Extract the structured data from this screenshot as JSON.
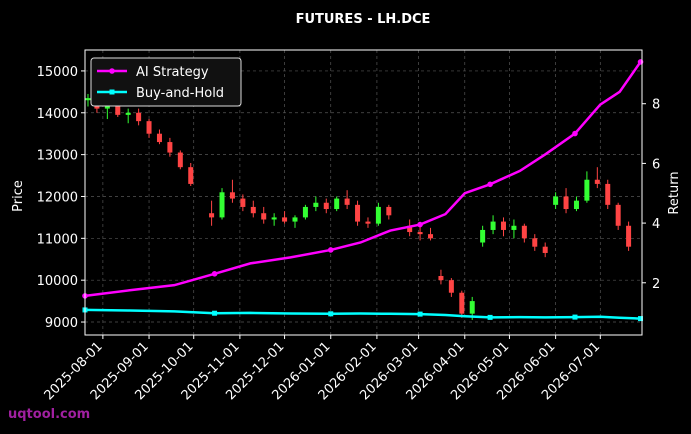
{
  "chart_data": {
    "type": "candlestick",
    "title": "FUTURES - LH.DCE",
    "ylabel": "Price",
    "y2label": "Return",
    "watermark": "uqtool.com",
    "xlim": [
      "2025-07-20",
      "2026-07-29"
    ],
    "xticks": [
      "2025-08-01",
      "2025-09-01",
      "2025-10-01",
      "2025-11-01",
      "2025-12-01",
      "2026-01-01",
      "2026-02-01",
      "2026-03-01",
      "2026-04-01",
      "2026-05-01",
      "2026-06-01",
      "2026-07-01"
    ],
    "ylim": [
      8690,
      15500
    ],
    "yticks": [
      9000,
      10000,
      11000,
      12000,
      13000,
      14000,
      15000
    ],
    "y2lim": [
      0.25,
      9.8
    ],
    "y2ticks": [
      2,
      4,
      6,
      8
    ],
    "grid": true,
    "legend": "upper left",
    "up_color": "#33ff33",
    "down_color": "#ff4444",
    "candles": {
      "x": [
        "2025-07-22",
        "2025-07-28",
        "2025-08-04",
        "2025-08-11",
        "2025-08-18",
        "2025-08-25",
        "2025-09-01",
        "2025-09-08",
        "2025-09-15",
        "2025-09-22",
        "2025-09-29",
        "2025-10-13",
        "2025-10-20",
        "2025-10-27",
        "2025-11-03",
        "2025-11-10",
        "2025-11-17",
        "2025-11-24",
        "2025-12-01",
        "2025-12-08",
        "2025-12-15",
        "2025-12-22",
        "2025-12-29",
        "2026-01-05",
        "2026-01-12",
        "2026-01-19",
        "2026-01-26",
        "2026-02-02",
        "2026-02-09",
        "2026-02-23",
        "2026-03-02",
        "2026-03-09",
        "2026-03-16",
        "2026-03-23",
        "2026-03-30",
        "2026-04-06",
        "2026-04-13",
        "2026-04-20",
        "2026-04-27",
        "2026-05-04",
        "2026-05-11",
        "2026-05-18",
        "2026-05-25",
        "2026-06-01",
        "2026-06-08",
        "2026-06-15",
        "2026-06-22",
        "2026-06-29",
        "2026-07-06",
        "2026-07-13",
        "2026-07-20"
      ],
      "open": [
        14300,
        14350,
        14100,
        14200,
        13950,
        14000,
        13800,
        13500,
        13300,
        13050,
        12700,
        11600,
        11500,
        12100,
        11950,
        11750,
        11600,
        11450,
        11500,
        11400,
        11500,
        11750,
        11850,
        11700,
        11950,
        11800,
        11400,
        11350,
        11750,
        11300,
        11150,
        11100,
        10100,
        10000,
        9700,
        9200,
        10900,
        11200,
        11400,
        11200,
        11300,
        11000,
        10800,
        11800,
        12000,
        11700,
        11900,
        12400,
        12300,
        11800,
        11300
      ],
      "high": [
        14450,
        14400,
        14250,
        14300,
        14100,
        14100,
        13850,
        13600,
        13400,
        13100,
        12800,
        11900,
        12200,
        12400,
        12050,
        11900,
        11750,
        11600,
        11650,
        11550,
        11800,
        12000,
        11950,
        12000,
        12150,
        11900,
        11500,
        11850,
        11800,
        11450,
        11300,
        11250,
        10250,
        10050,
        9750,
        9600,
        11300,
        11550,
        11500,
        11450,
        11350,
        11100,
        10900,
        12100,
        12200,
        12000,
        12600,
        12700,
        12400,
        11850,
        11400
      ],
      "low": [
        14150,
        14000,
        13850,
        13900,
        13750,
        13700,
        13400,
        13250,
        12950,
        12650,
        12250,
        11300,
        11450,
        11850,
        11650,
        11500,
        11350,
        11300,
        11350,
        11250,
        11450,
        11650,
        11600,
        11650,
        11700,
        11300,
        11250,
        11300,
        11450,
        11050,
        10950,
        10950,
        9900,
        9600,
        9100,
        9050,
        10800,
        11100,
        11050,
        11000,
        10900,
        10700,
        10550,
        11700,
        11600,
        11650,
        11850,
        12200,
        11700,
        11200,
        10700
      ],
      "close": [
        14350,
        14100,
        14200,
        13950,
        14000,
        13800,
        13500,
        13300,
        13050,
        12700,
        12300,
        11500,
        12100,
        11950,
        11750,
        11600,
        11450,
        11500,
        11400,
        11500,
        11750,
        11850,
        11700,
        11950,
        11800,
        11400,
        11350,
        11750,
        11550,
        11150,
        11100,
        11000,
        10000,
        9700,
        9200,
        9500,
        11200,
        11400,
        11200,
        11300,
        11000,
        10800,
        10650,
        12000,
        11700,
        11900,
        12400,
        12300,
        11800,
        11300,
        10800
      ]
    },
    "x": [
      "2025-07-20",
      "2025-08-19",
      "2025-09-18",
      "2025-10-15",
      "2025-11-08",
      "2025-12-05",
      "2026-01-01",
      "2026-01-21",
      "2026-02-10",
      "2026-03-02",
      "2026-03-19",
      "2026-04-01",
      "2026-04-18",
      "2026-05-08",
      "2026-05-25",
      "2026-06-14",
      "2026-07-01",
      "2026-07-14",
      "2026-07-28"
    ],
    "series": [
      {
        "name": "AI Strategy",
        "color": "#ff00ff",
        "axis": "y2",
        "marker": "circle",
        "values": [
          1.56,
          1.75,
          1.92,
          2.3,
          2.65,
          2.85,
          3.1,
          3.35,
          3.75,
          3.95,
          4.3,
          5.0,
          5.3,
          5.75,
          6.3,
          7.0,
          7.97,
          8.4,
          9.4
        ]
      },
      {
        "name": "Buy-and-Hold",
        "color": "#00ffff",
        "axis": "y2",
        "marker": "square",
        "values": [
          1.09,
          1.07,
          1.04,
          0.98,
          0.99,
          0.97,
          0.96,
          0.97,
          0.96,
          0.95,
          0.92,
          0.88,
          0.84,
          0.85,
          0.84,
          0.85,
          0.86,
          0.83,
          0.8
        ]
      }
    ]
  }
}
